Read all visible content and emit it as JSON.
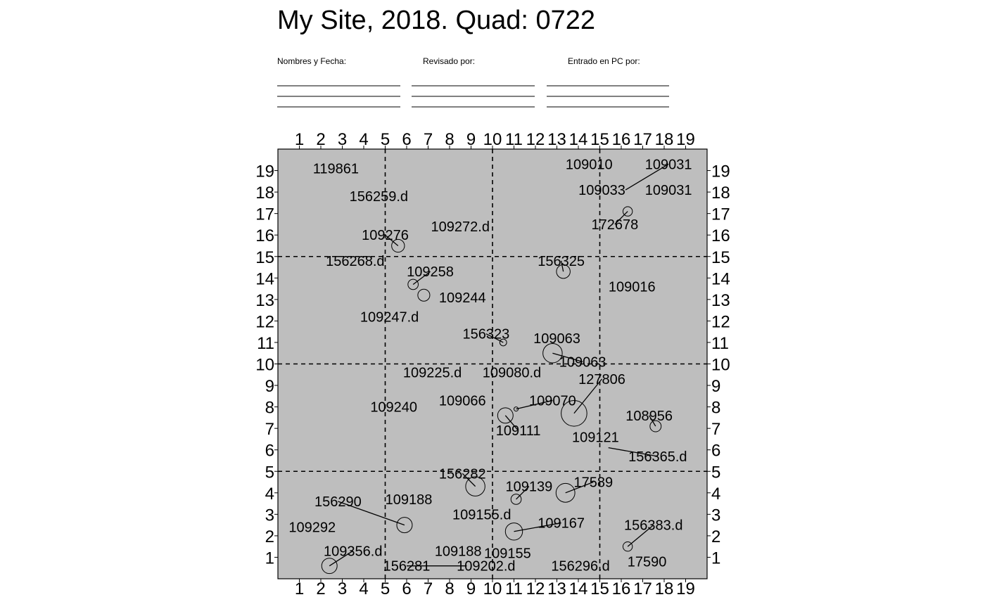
{
  "header": {
    "title": "My Site, 2018. Quad: 0722",
    "fields": [
      {
        "label": "Nombres y Fecha:"
      },
      {
        "label": "Revisado por:"
      },
      {
        "label": "Entrado en PC por:"
      }
    ]
  },
  "axes": {
    "min": 0,
    "max": 20,
    "ticks": [
      1,
      2,
      3,
      4,
      5,
      6,
      7,
      8,
      9,
      10,
      11,
      12,
      13,
      14,
      15,
      16,
      17,
      18,
      19
    ],
    "divisions": [
      5,
      10,
      15
    ]
  },
  "colors": {
    "plot_bg": "#bebebe",
    "ink": "#000000"
  },
  "trees": [
    {
      "label": "119861",
      "lx": 2.7,
      "ly": 19.1
    },
    {
      "label": "156259.d",
      "lx": 4.7,
      "ly": 17.8
    },
    {
      "label": "109010",
      "lx": 14.5,
      "ly": 19.3
    },
    {
      "label": "109031",
      "lx": 18.2,
      "ly": 19.3,
      "x": 16.2,
      "y": 18.1
    },
    {
      "label": "109033",
      "lx": 15.1,
      "ly": 18.1
    },
    {
      "label": "109031",
      "lx": 18.2,
      "ly": 18.1
    },
    {
      "label": "172678",
      "lx": 15.7,
      "ly": 16.5,
      "x": 16.3,
      "y": 17.1,
      "r": 0.22
    },
    {
      "label": "109276",
      "lx": 5.0,
      "ly": 16.0,
      "x": 5.6,
      "y": 15.5,
      "r": 0.3
    },
    {
      "label": "109272.d",
      "lx": 8.5,
      "ly": 16.4
    },
    {
      "label": "156268.d",
      "lx": 3.6,
      "ly": 14.8
    },
    {
      "label": "156325",
      "lx": 13.2,
      "ly": 14.8,
      "x": 13.3,
      "y": 14.3,
      "r": 0.32
    },
    {
      "label": "109258",
      "lx": 7.1,
      "ly": 14.3,
      "x": 6.3,
      "y": 13.7,
      "r": 0.24
    },
    {
      "label": "",
      "x": 6.8,
      "y": 13.2,
      "r": 0.28
    },
    {
      "label": "109016",
      "lx": 16.5,
      "ly": 13.6
    },
    {
      "label": "109244",
      "lx": 8.6,
      "ly": 13.1
    },
    {
      "label": "109247.d",
      "lx": 5.2,
      "ly": 12.2
    },
    {
      "label": "156323",
      "lx": 9.7,
      "ly": 11.4,
      "x": 10.5,
      "y": 11.0,
      "r": 0.16
    },
    {
      "label": "109063",
      "lx": 13.0,
      "ly": 11.2
    },
    {
      "label": "109063",
      "lx": 14.2,
      "ly": 10.1,
      "x": 12.8,
      "y": 10.5,
      "r": 0.45
    },
    {
      "label": "109225.d",
      "lx": 7.2,
      "ly": 9.6
    },
    {
      "label": "109080.d",
      "lx": 10.9,
      "ly": 9.6
    },
    {
      "label": "127806",
      "lx": 15.1,
      "ly": 9.3,
      "x": 13.8,
      "y": 7.7,
      "r": 0.6
    },
    {
      "label": "109066",
      "lx": 8.6,
      "ly": 8.3
    },
    {
      "label": "109070",
      "lx": 12.8,
      "ly": 8.3,
      "x": 11.1,
      "y": 7.9,
      "r": 0.1
    },
    {
      "label": "109240",
      "lx": 5.4,
      "ly": 8.0
    },
    {
      "label": "108956",
      "lx": 17.3,
      "ly": 7.6,
      "x": 17.6,
      "y": 7.1,
      "r": 0.26
    },
    {
      "label": "109111",
      "lx": 11.2,
      "ly": 6.9,
      "x": 10.6,
      "y": 7.6,
      "r": 0.36
    },
    {
      "label": "109121",
      "lx": 14.8,
      "ly": 6.6
    },
    {
      "label": "156365.d",
      "lx": 17.7,
      "ly": 5.7,
      "x": 15.4,
      "y": 6.1
    },
    {
      "label": "156282",
      "lx": 8.6,
      "ly": 4.9,
      "x": 9.2,
      "y": 4.3,
      "r": 0.45
    },
    {
      "label": "109139",
      "lx": 11.7,
      "ly": 4.3,
      "x": 11.1,
      "y": 3.7,
      "r": 0.24
    },
    {
      "label": "17589",
      "lx": 14.7,
      "ly": 4.5,
      "x": 13.4,
      "y": 4.0,
      "r": 0.44
    },
    {
      "label": "156290",
      "lx": 2.8,
      "ly": 3.6,
      "x": 5.9,
      "y": 2.5,
      "r": 0.36
    },
    {
      "label": "109188",
      "lx": 6.1,
      "ly": 3.7
    },
    {
      "label": "109155.d",
      "lx": 9.5,
      "ly": 3.0
    },
    {
      "label": "109167",
      "lx": 13.2,
      "ly": 2.6,
      "x": 11.0,
      "y": 2.2,
      "r": 0.4
    },
    {
      "label": "109292",
      "lx": 1.6,
      "ly": 2.4
    },
    {
      "label": "109188",
      "lx": 8.4,
      "ly": 1.3
    },
    {
      "label": "109155",
      "lx": 10.7,
      "ly": 1.2
    },
    {
      "label": "156383.d",
      "lx": 17.5,
      "ly": 2.5,
      "x": 16.3,
      "y": 1.5,
      "r": 0.22
    },
    {
      "label": "109356.d",
      "lx": 3.5,
      "ly": 1.3,
      "x": 2.4,
      "y": 0.6,
      "r": 0.36
    },
    {
      "label": "17590",
      "lx": 17.2,
      "ly": 0.8
    },
    {
      "label": "156281",
      "lx": 6.0,
      "ly": 0.6,
      "x": 8.8,
      "y": 0.6
    },
    {
      "label": "109202.d",
      "lx": 9.7,
      "ly": 0.6
    },
    {
      "label": "156296.d",
      "lx": 14.1,
      "ly": 0.6
    }
  ]
}
